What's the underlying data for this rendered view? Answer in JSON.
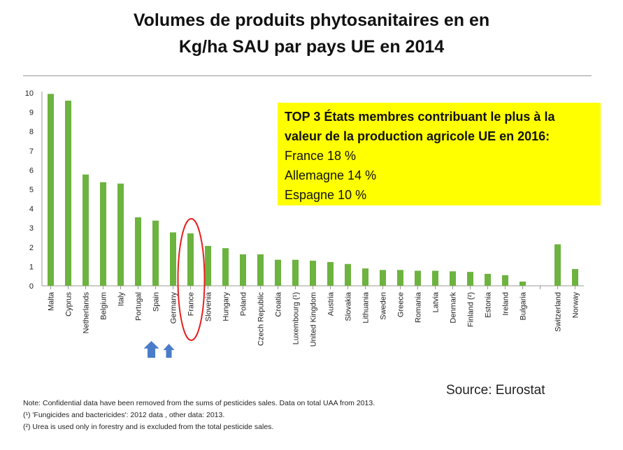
{
  "title_line1": "Volumes de produits phytosanitaires en en",
  "title_line2": "Kg/ha SAU par pays UE en 2014",
  "callout": {
    "heading_line1": "TOP 3 États membres contribuant le plus à la",
    "heading_line2": "valeur de la production agricole UE en 2016:",
    "items": [
      "France 18 %",
      "Allemagne 14 %",
      "Espagne 10 %"
    ],
    "background_color": "#ffff00"
  },
  "source": "Source: Eurostat",
  "notes": [
    "Note: Confidential data have been removed from the sums of pesticides sales. Data on total UAA from 2013.",
    "(¹) 'Fungicides and bactericides': 2012 data , other data: 2013.",
    "(²) Urea is used only in forestry and is excluded from the total pesticide sales."
  ],
  "chart_data": {
    "type": "bar",
    "categories": [
      "Malta",
      "Cyprus",
      "Netherlands",
      "Belgium",
      "Italy",
      "Portugal",
      "Spain",
      "Germany",
      "France",
      "Slovenia",
      "Hungary",
      "Poland",
      "Czech Republic",
      "Croatia",
      "Luxembourg (¹)",
      "United Kingdom",
      "Austria",
      "Slovakia",
      "Lithuania",
      "Sweden",
      "Greece",
      "Romania",
      "Latvia",
      "Denmark",
      "Finland (²)",
      "Estonia",
      "Ireland",
      "Bulgaria",
      "",
      "Switzerland",
      "Norway"
    ],
    "values": [
      9.95,
      9.6,
      5.77,
      5.37,
      5.3,
      3.55,
      3.38,
      2.77,
      2.72,
      2.07,
      1.95,
      1.63,
      1.63,
      1.35,
      1.35,
      1.3,
      1.23,
      1.13,
      0.9,
      0.82,
      0.82,
      0.78,
      0.78,
      0.75,
      0.72,
      0.62,
      0.55,
      0.22,
      null,
      2.15,
      0.87
    ],
    "yticks": [
      0,
      1,
      2,
      3,
      4,
      5,
      6,
      7,
      8,
      9,
      10
    ],
    "ylim": [
      0,
      10
    ],
    "grid": false,
    "bar_color": "#6db33f",
    "highlight": "France",
    "highlight_color": "#e8201e",
    "arrow_markers": [
      "Spain",
      "Germany"
    ],
    "arrow_color": "#4a7cc9"
  }
}
